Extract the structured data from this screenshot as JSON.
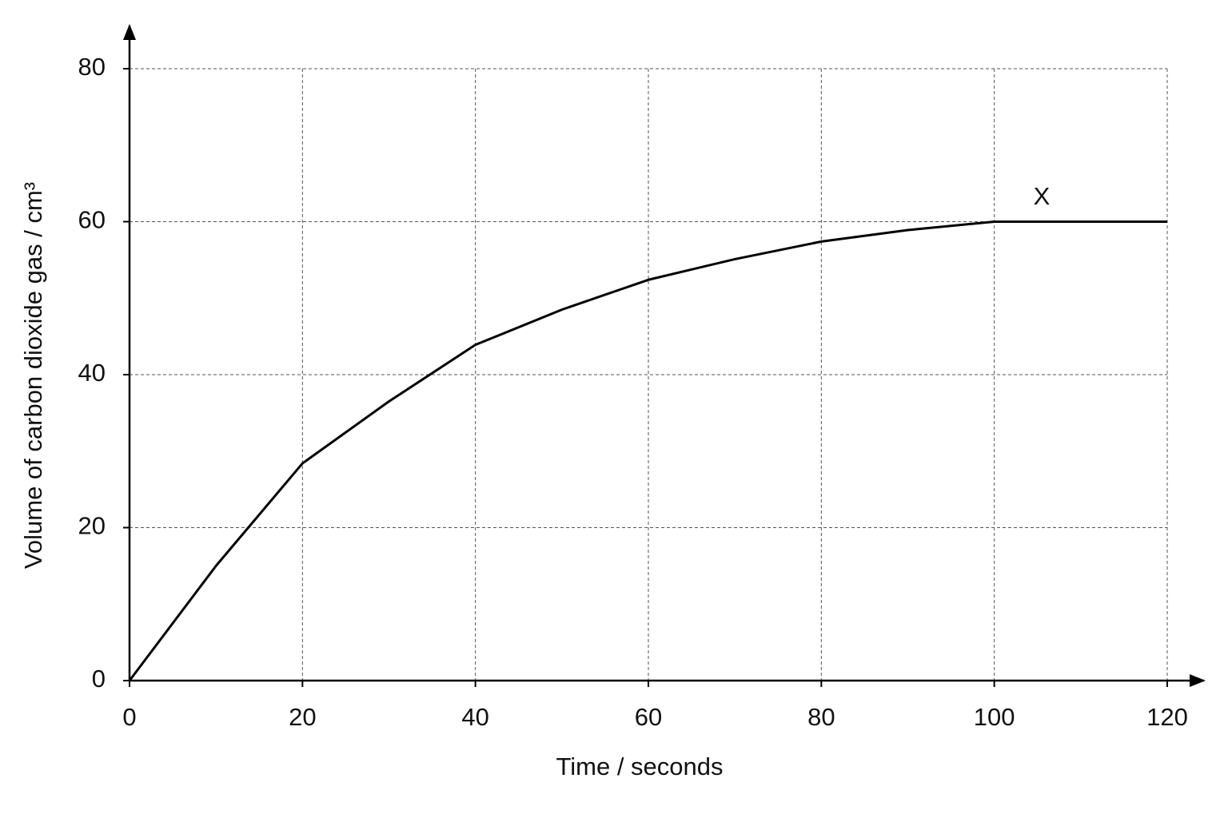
{
  "chart_data": {
    "type": "line",
    "x_label": "Time / seconds",
    "y_label": "Volume of carbon dioxide gas / cm³",
    "annotation": "X",
    "x": [
      0,
      10,
      20,
      30,
      40,
      50,
      60,
      70,
      80,
      90,
      100,
      110,
      120
    ],
    "series": [
      {
        "color": "#000000",
        "values": [
          0,
          15,
          28.4,
          36.5,
          43.9,
          48.5,
          52.4,
          55.1,
          57.4,
          58.9,
          60,
          60,
          60
        ]
      }
    ],
    "xlim": [
      0,
      120
    ],
    "xticks": [
      0,
      20,
      40,
      60,
      80,
      100,
      120
    ],
    "ylim": [
      0,
      80
    ],
    "yticks": [
      0,
      20,
      40,
      60,
      80
    ],
    "grid": true
  }
}
